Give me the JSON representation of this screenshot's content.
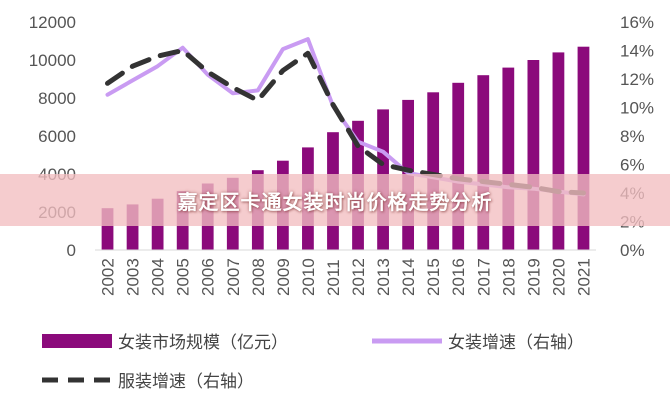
{
  "banner": {
    "title": "嘉定区卡通女装时尚价格走势分析"
  },
  "chart_data": {
    "type": "bar",
    "categories": [
      "2002",
      "2003",
      "2004",
      "2005",
      "2006",
      "2007",
      "2008",
      "2009",
      "2010",
      "2011",
      "2012",
      "2013",
      "2014",
      "2015",
      "2016",
      "2017",
      "2018",
      "2019",
      "2020",
      "2021"
    ],
    "y_left": {
      "ylim": [
        0,
        12000
      ],
      "ticks": [
        "0",
        "2000",
        "4000",
        "6000",
        "8000",
        "10000",
        "12000"
      ]
    },
    "y_right": {
      "ylim": [
        0,
        16
      ],
      "ticks": [
        "0%",
        "2%",
        "4%",
        "6%",
        "8%",
        "10%",
        "12%",
        "14%",
        "16%"
      ]
    },
    "series": [
      {
        "name": "女装市场规模（亿元）",
        "type": "bar",
        "axis": "left",
        "color": "#8b0a7b",
        "values": [
          2200,
          2400,
          2700,
          3100,
          3500,
          3800,
          4200,
          4700,
          5400,
          6200,
          6800,
          7400,
          7900,
          8300,
          8800,
          9200,
          9600,
          10000,
          10400,
          10700
        ]
      },
      {
        "name": "女装增速（右轴）",
        "type": "line",
        "axis": "right",
        "color": "#c99bf2",
        "dash": "solid",
        "values": [
          10.9,
          11.9,
          12.9,
          14.2,
          12.3,
          11.0,
          11.2,
          14.1,
          14.8,
          10.1,
          7.6,
          6.9,
          5.4,
          5.1,
          4.8,
          4.6,
          4.4,
          4.3,
          4.1,
          3.9
        ]
      },
      {
        "name": "服装增速（右轴）",
        "type": "line",
        "axis": "right",
        "color": "#333333",
        "dash": "dashed",
        "values": [
          11.7,
          12.9,
          13.6,
          14.0,
          12.5,
          11.4,
          10.5,
          12.6,
          13.8,
          10.2,
          7.3,
          6.0,
          5.6,
          5.3,
          5.0,
          4.8,
          4.6,
          4.4,
          4.1,
          4.0
        ]
      }
    ],
    "legend_position": "bottom",
    "grid": false
  }
}
